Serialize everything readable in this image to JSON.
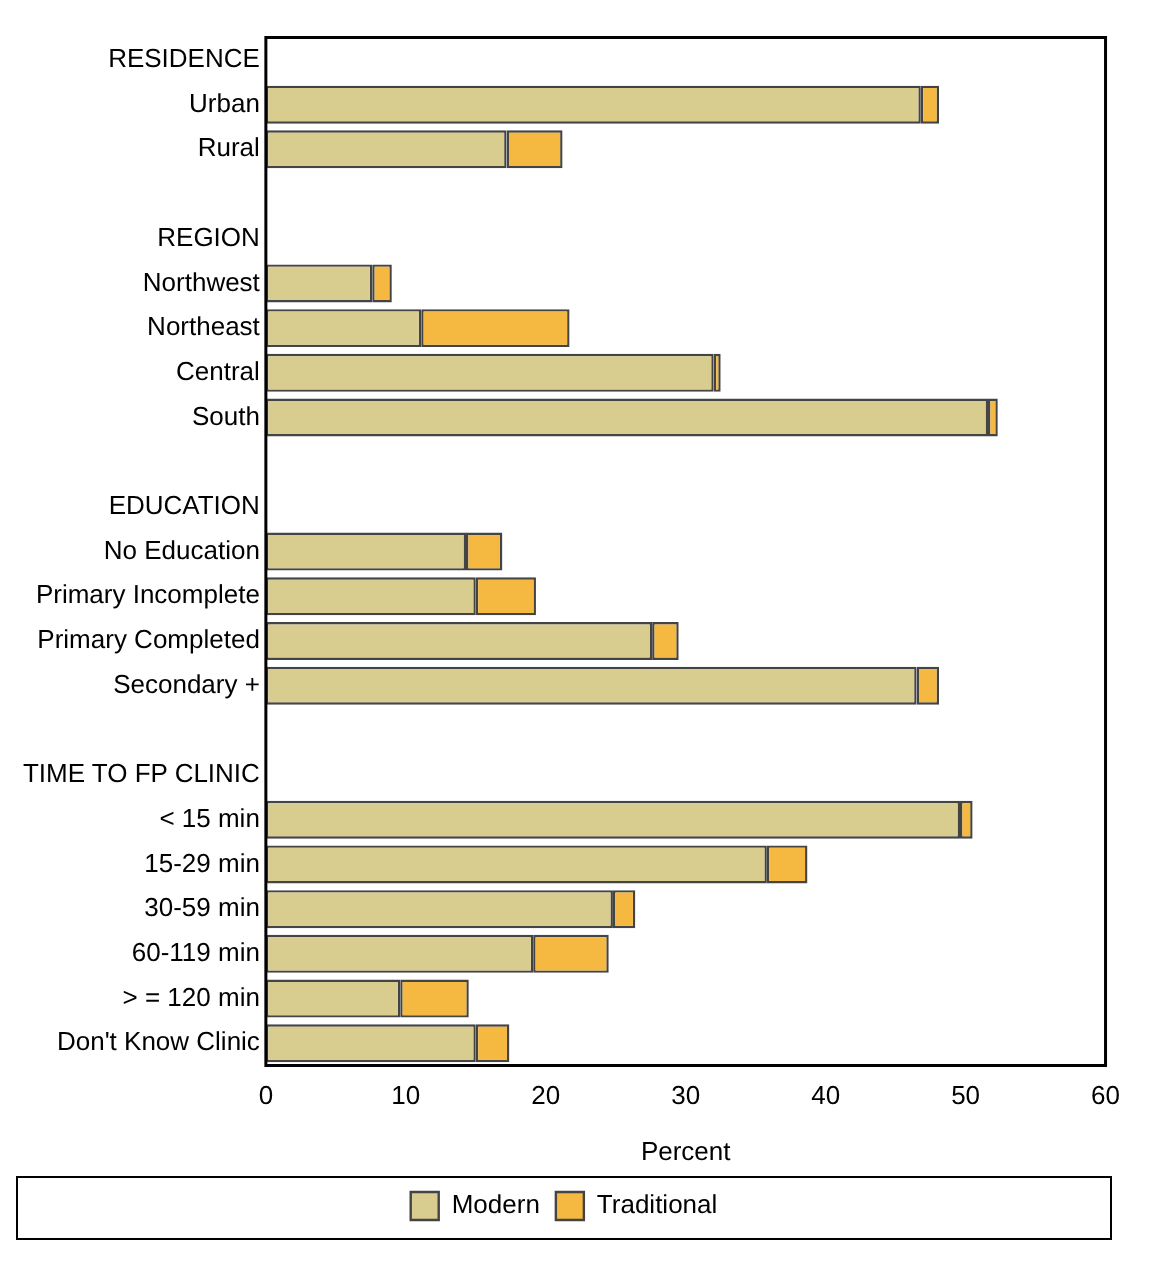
{
  "chart_data": {
    "type": "bar",
    "orientation": "horizontal",
    "stacked": true,
    "xlabel": "Percent",
    "categories": [
      "RESIDENCE",
      "Urban",
      "Rural",
      null,
      "REGION",
      "Northwest",
      "Northeast",
      "Central",
      "South",
      null,
      "EDUCATION",
      "No Education",
      "Primary Incomplete",
      "Primary Completed",
      "Secondary +",
      null,
      "TIME TO FP CLINIC",
      "< 15 min",
      "15-29 min",
      "30-59 min",
      "60-119 min",
      "> = 120 min",
      "Don't Know Clinic"
    ],
    "series": [
      {
        "name": "Modern",
        "color": "#d9cc8f",
        "values": [
          null,
          46.8,
          17.2,
          null,
          null,
          7.6,
          11.1,
          32.0,
          51.6,
          null,
          null,
          14.3,
          15.0,
          27.6,
          46.5,
          null,
          null,
          49.6,
          35.8,
          24.8,
          19.1,
          9.6,
          15.0
        ]
      },
      {
        "name": "Traditional",
        "color": "#f5b942",
        "values": [
          null,
          1.3,
          4.0,
          null,
          null,
          1.4,
          10.6,
          0.5,
          0.7,
          null,
          null,
          2.6,
          4.3,
          1.9,
          1.6,
          null,
          null,
          0.9,
          2.9,
          1.6,
          5.4,
          4.9,
          2.4
        ]
      }
    ],
    "xlim": [
      0,
      60
    ],
    "xticks": [
      0,
      10,
      20,
      30,
      40,
      50,
      60
    ],
    "grid": false,
    "legend": "bottom"
  }
}
